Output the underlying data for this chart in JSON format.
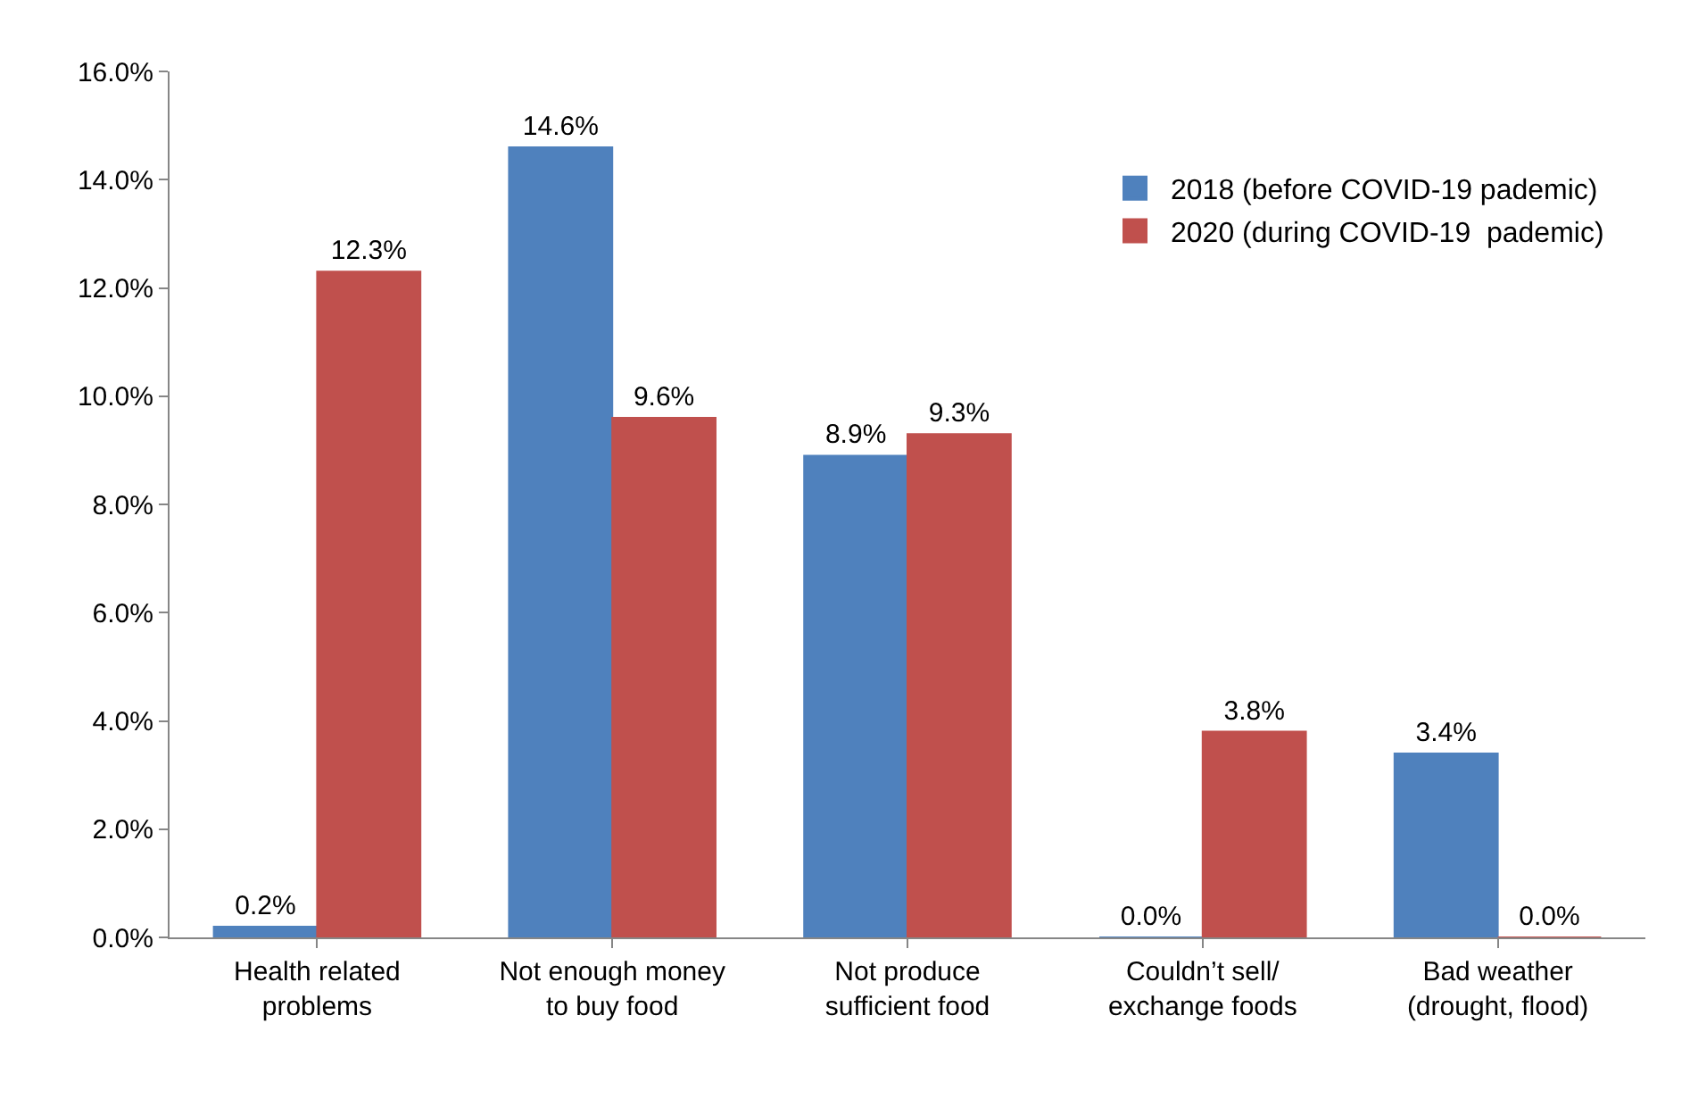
{
  "chart_data": {
    "type": "bar",
    "categories": [
      "Health related\nproblems",
      "Not enough money\nto buy food",
      "Not produce\nsufficient food",
      "Couldn’t sell/\nexchange foods",
      "Bad weather\n(drought, flood)"
    ],
    "series": [
      {
        "name": "2018 (before COVID-19 pademic)",
        "color": "#4f81bd",
        "values": [
          0.2,
          14.6,
          8.9,
          0.0,
          3.4
        ],
        "value_labels": [
          "0.2%",
          "14.6%",
          "8.9%",
          "0.0%",
          "3.4%"
        ]
      },
      {
        "name": "2020 (during COVID-19  pademic)",
        "color": "#c0504d",
        "values": [
          12.3,
          9.6,
          9.3,
          3.8,
          0.0
        ],
        "value_labels": [
          "12.3%",
          "9.6%",
          "9.3%",
          "3.8%",
          "0.0%"
        ]
      }
    ],
    "ylim": [
      0,
      16
    ],
    "yticks": [
      {
        "value": 0,
        "label": "0.0%"
      },
      {
        "value": 2,
        "label": "2.0%"
      },
      {
        "value": 4,
        "label": "4.0%"
      },
      {
        "value": 6,
        "label": "6.0%"
      },
      {
        "value": 8,
        "label": "8.0%"
      },
      {
        "value": 10,
        "label": "10.0%"
      },
      {
        "value": 12,
        "label": "12.0%"
      },
      {
        "value": 14,
        "label": "14.0%"
      },
      {
        "value": 16,
        "label": "16.0%"
      }
    ],
    "grid": false,
    "legend": "top right"
  }
}
